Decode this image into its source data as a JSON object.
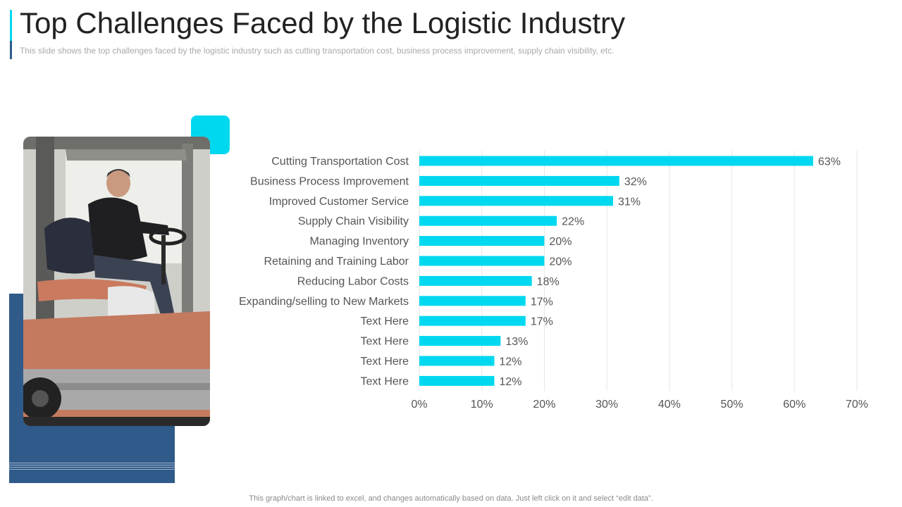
{
  "slide": {
    "title": "Top Challenges Faced by the Logistic Industry",
    "subtitle": "This slide shows the top challenges faced by the logistic industry such as cutting transportation cost, business process improvement,  supply chain visibility, etc.",
    "footer": "This graph/chart is linked to excel, and changes automatically based on data. Just left click on it and select “edit data”."
  },
  "colors": {
    "accent": "#00D8F0",
    "navy": "#2F5A8A",
    "text": "#222222",
    "muted": "#A9A9A9",
    "label": "#555555",
    "grid": "#E6E6E6"
  },
  "chart_data": {
    "type": "bar",
    "orientation": "horizontal",
    "categories": [
      "Cutting Transportation Cost",
      "Business Process Improvement",
      "Improved Customer Service",
      "Supply Chain Visibility",
      "Managing Inventory",
      "Retaining and Training Labor",
      "Reducing Labor Costs",
      "Expanding/selling to New Markets",
      "Text Here",
      "Text Here",
      "Text Here",
      "Text Here"
    ],
    "values": [
      63,
      32,
      31,
      22,
      20,
      20,
      18,
      17,
      17,
      13,
      12,
      12
    ],
    "value_labels": [
      "63%",
      "32%",
      "31%",
      "22%",
      "20%",
      "20%",
      "18%",
      "17%",
      "17%",
      "13%",
      "12%",
      "12%"
    ],
    "x_ticks": [
      0,
      10,
      20,
      30,
      40,
      50,
      60,
      70
    ],
    "x_tick_labels": [
      "0%",
      "10%",
      "20%",
      "30%",
      "40%",
      "50%",
      "60%",
      "70%"
    ],
    "xlim": [
      0,
      70
    ],
    "title": "",
    "xlabel": "",
    "ylabel": "",
    "grid": true,
    "legend": "none"
  }
}
